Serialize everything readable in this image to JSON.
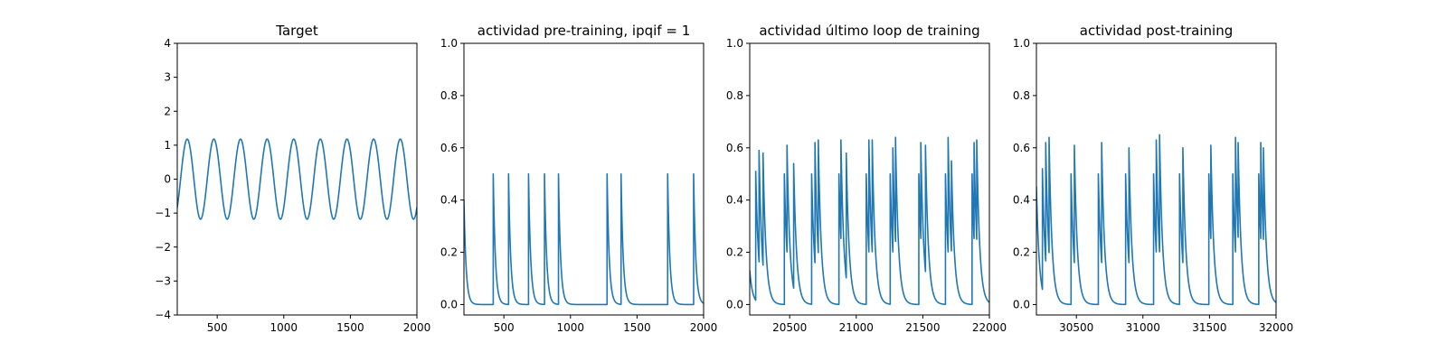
{
  "figure": {
    "background": "#ffffff",
    "line_color": "#1f77b4"
  },
  "chart_data": [
    {
      "type": "line",
      "title": "Target",
      "xlabel": "",
      "ylabel": "",
      "xlim": [
        200,
        2000
      ],
      "ylim": [
        -4,
        4
      ],
      "xticks": [
        500,
        1000,
        1500,
        2000
      ],
      "yticks": [
        -4,
        -3,
        -2,
        -1,
        0,
        1,
        2,
        3,
        4
      ],
      "grid": false,
      "series": [
        {
          "kind": "sine",
          "amplitude": 1.18,
          "period": 200,
          "peak_x": 275,
          "x_start": 200,
          "x_end": 2000
        }
      ]
    },
    {
      "type": "line",
      "title": "actividad pre-training, ipqif = 1",
      "xlabel": "",
      "ylabel": "",
      "xlim": [
        200,
        2000
      ],
      "ylim": [
        -0.04,
        1.0
      ],
      "xticks": [
        500,
        1000,
        1500,
        2000
      ],
      "yticks": [
        0.0,
        0.2,
        0.4,
        0.6,
        0.8,
        1.0
      ],
      "ytick_decimals": 1,
      "grid": false,
      "series": [
        {
          "kind": "spikes",
          "decay": 16,
          "initial": 0.4,
          "spike_x": [
            420,
            535,
            685,
            805,
            910,
            1275,
            1380,
            1730,
            1925
          ],
          "spike_y": [
            0.5,
            0.5,
            0.5,
            0.5,
            0.5,
            0.5,
            0.5,
            0.5,
            0.5
          ]
        }
      ]
    },
    {
      "type": "line",
      "title": "actividad último loop de training",
      "xlabel": "",
      "ylabel": "",
      "xlim": [
        20200,
        22000
      ],
      "ylim": [
        -0.04,
        1.0
      ],
      "xticks": [
        20500,
        21000,
        21500,
        22000
      ],
      "yticks": [
        0.0,
        0.2,
        0.4,
        0.6,
        0.8,
        1.0
      ],
      "ytick_decimals": 1,
      "grid": false,
      "series": [
        {
          "kind": "spikes",
          "decay": 22,
          "initial": 0.13,
          "spike_x": [
            20245,
            20270,
            20300,
            20460,
            20480,
            20530,
            20665,
            20690,
            20715,
            20870,
            20885,
            20925,
            21075,
            21095,
            21120,
            21255,
            21275,
            21295,
            21470,
            21485,
            21520,
            21670,
            21690,
            21715,
            21870,
            21885,
            21905
          ],
          "spike_y": [
            0.51,
            0.59,
            0.58,
            0.5,
            0.61,
            0.54,
            0.5,
            0.62,
            0.63,
            0.5,
            0.63,
            0.58,
            0.5,
            0.63,
            0.63,
            0.5,
            0.6,
            0.64,
            0.5,
            0.62,
            0.61,
            0.5,
            0.64,
            0.55,
            0.5,
            0.62,
            0.63
          ]
        }
      ]
    },
    {
      "type": "line",
      "title": "actividad post-training",
      "xlabel": "",
      "ylabel": "",
      "xlim": [
        30200,
        32000
      ],
      "ylim": [
        -0.04,
        1.0
      ],
      "xticks": [
        30500,
        31000,
        31500,
        32000
      ],
      "yticks": [
        0.0,
        0.2,
        0.4,
        0.6,
        0.8,
        1.0
      ],
      "ytick_decimals": 1,
      "grid": false,
      "series": [
        {
          "kind": "spikes",
          "decay": 22,
          "initial": 0.45,
          "spike_x": [
            30245,
            30270,
            30295,
            30460,
            30485,
            30665,
            30690,
            30870,
            30895,
            31080,
            31100,
            31125,
            31275,
            31300,
            31495,
            31510,
            31675,
            31695,
            31715,
            31870,
            31885,
            31905
          ],
          "spike_y": [
            0.52,
            0.62,
            0.64,
            0.5,
            0.61,
            0.5,
            0.62,
            0.5,
            0.6,
            0.5,
            0.63,
            0.65,
            0.5,
            0.6,
            0.5,
            0.61,
            0.5,
            0.64,
            0.62,
            0.5,
            0.62,
            0.6
          ]
        }
      ]
    }
  ]
}
